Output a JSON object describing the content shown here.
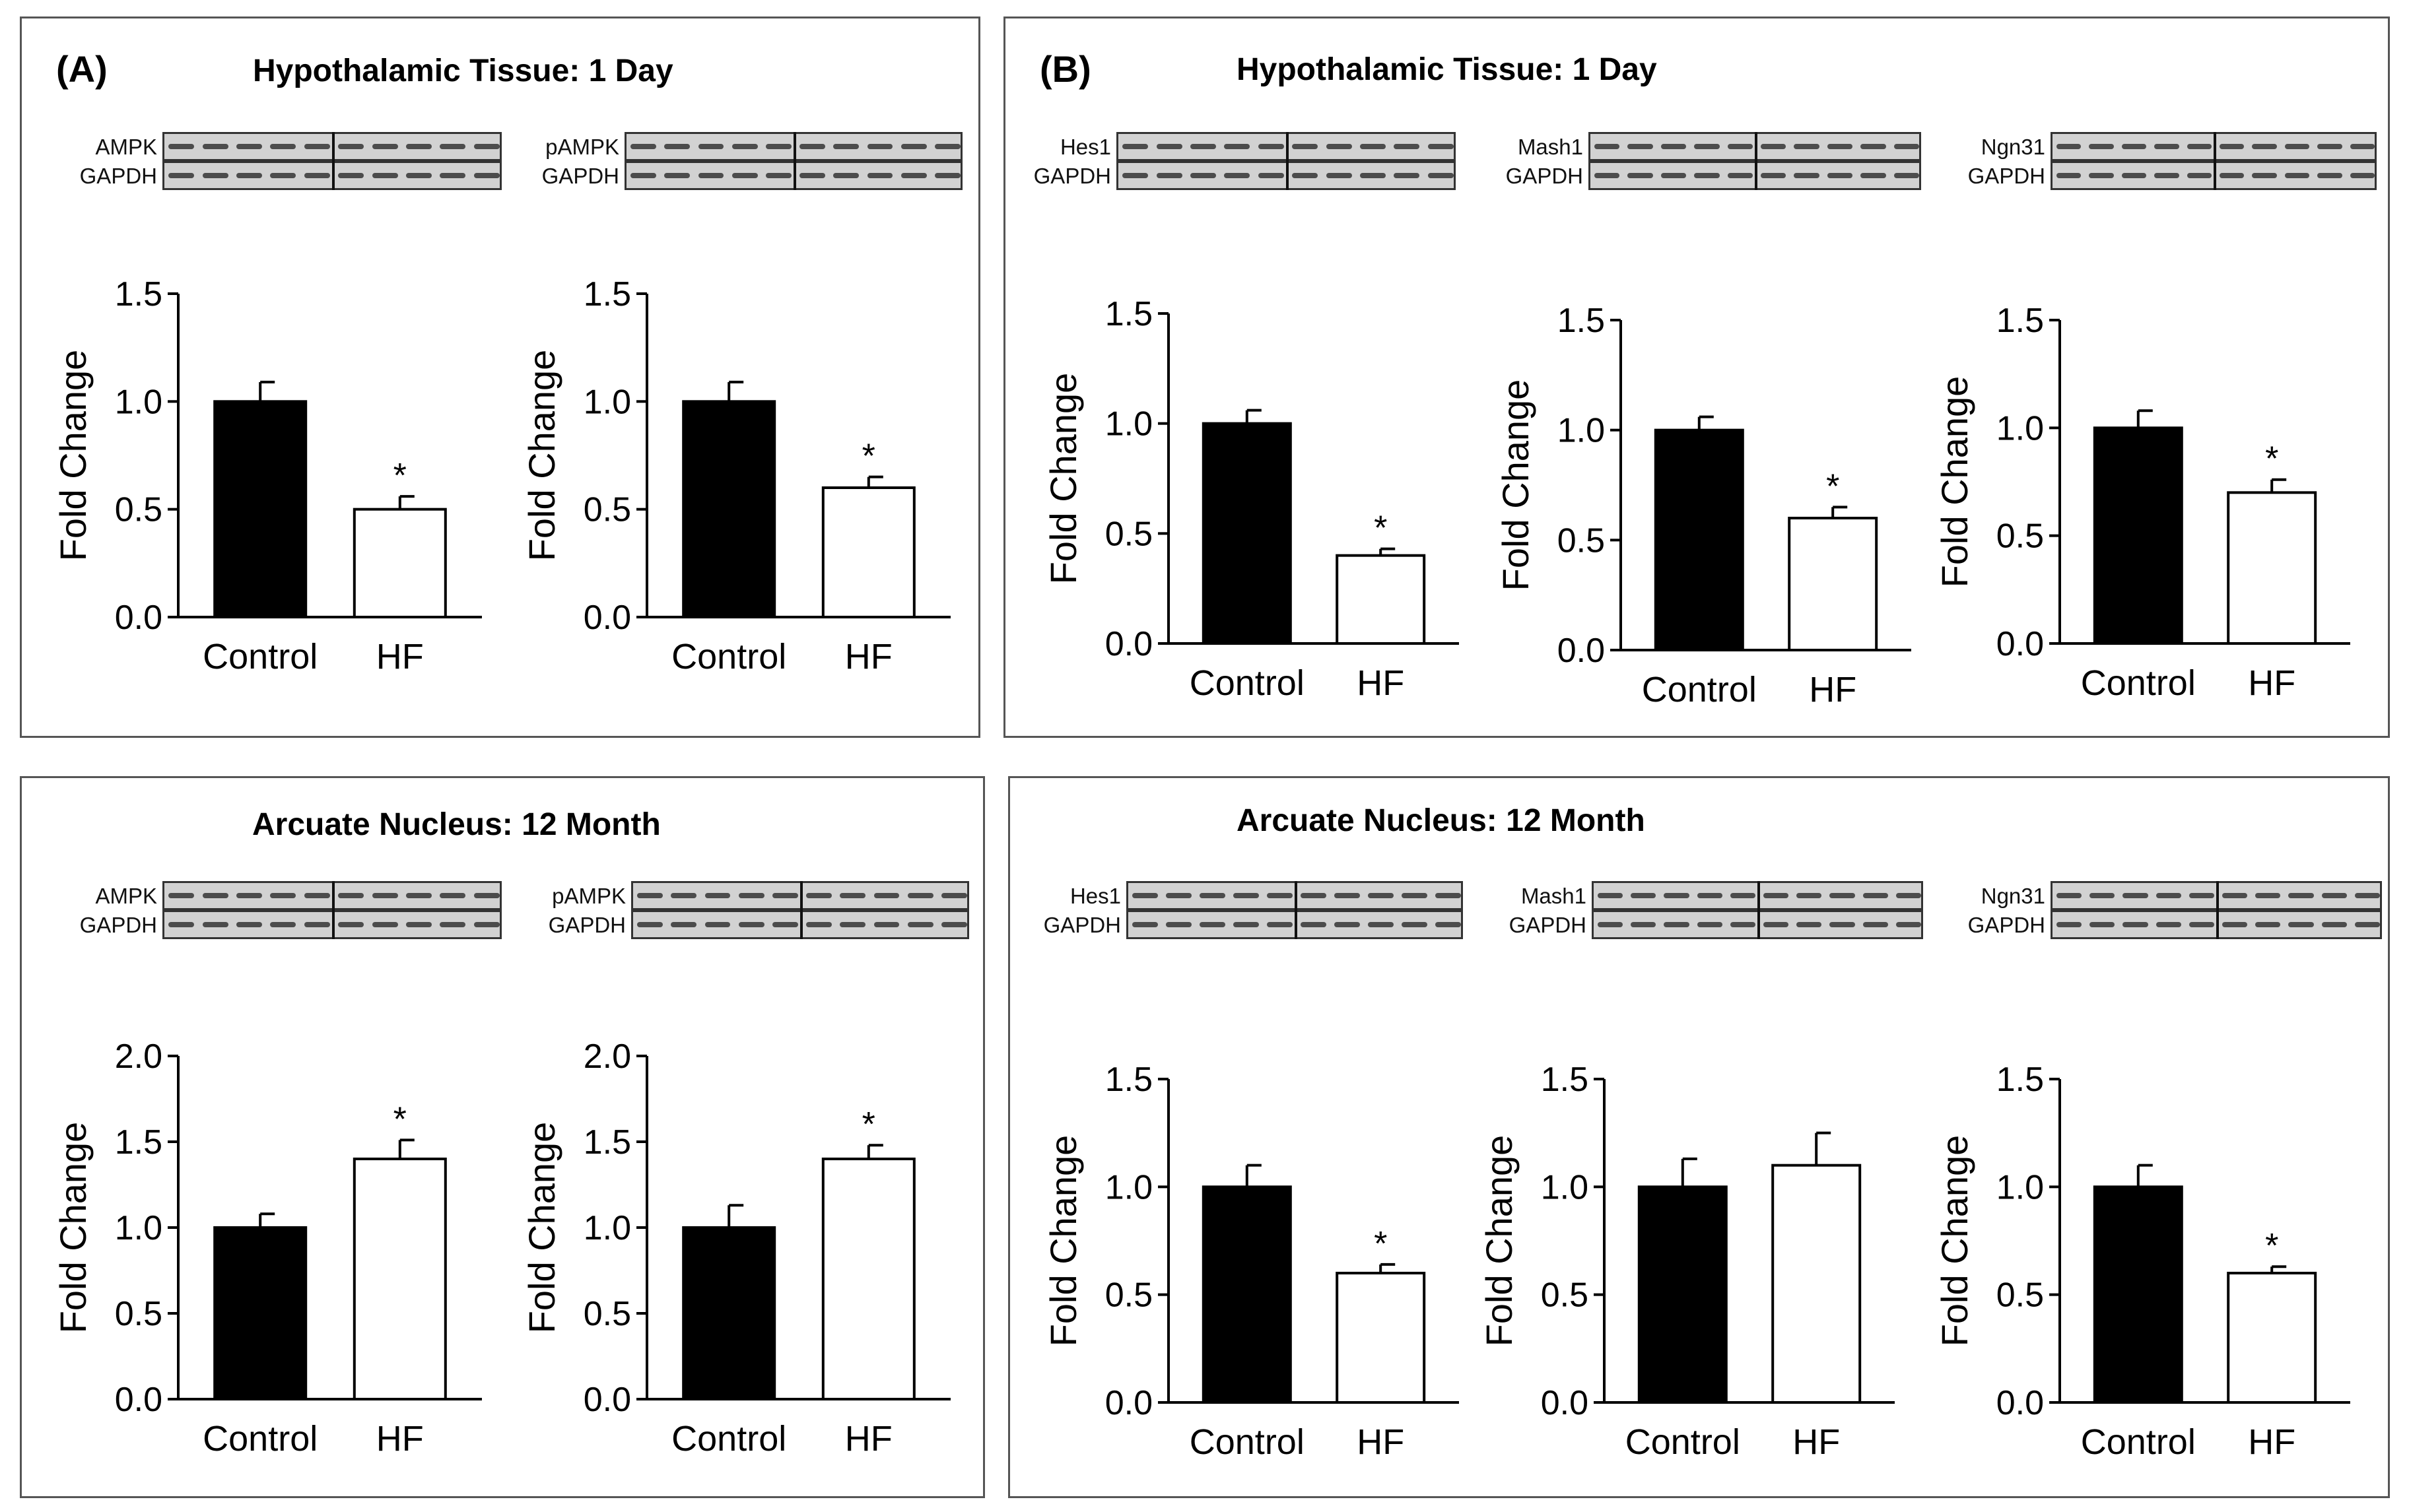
{
  "panels": [
    {
      "id": "A-top",
      "label": "(A)",
      "title": "Hypothalamic Tissue: 1 Day"
    },
    {
      "id": "B-top",
      "label": "(B)",
      "title": "Hypothalamic Tissue: 1 Day"
    },
    {
      "id": "A-bottom",
      "label": "",
      "title": "Arcuate Nucleus: 12 Month"
    },
    {
      "id": "B-bottom",
      "label": "",
      "title": "Arcuate Nucleus: 12 Month"
    }
  ],
  "blots": {
    "a1": {
      "target": "AMPK",
      "control": "GAPDH"
    },
    "a2": {
      "target": "pAMPK",
      "control": "GAPDH"
    },
    "b1": {
      "target": "Hes1",
      "control": "GAPDH"
    },
    "b2": {
      "target": "Mash1",
      "control": "GAPDH"
    },
    "b3": {
      "target": "Ngn31",
      "control": "GAPDH"
    },
    "c1": {
      "target": "AMPK",
      "control": "GAPDH"
    },
    "c2": {
      "target": "pAMPK",
      "control": "GAPDH"
    },
    "d1": {
      "target": "Hes1",
      "control": "GAPDH"
    },
    "d2": {
      "target": "Mash1",
      "control": "GAPDH"
    },
    "d3": {
      "target": "Ngn31",
      "control": "GAPDH"
    }
  },
  "colors": {
    "control_bar": "#000000",
    "hf_bar": "#ffffff",
    "axis": "#000000"
  },
  "chart_data": [
    {
      "id": "a1",
      "type": "bar",
      "panel": "A-top",
      "protein": "AMPK",
      "ylabel": "Fold Change",
      "categories": [
        "Control",
        "HF"
      ],
      "values": [
        1.0,
        0.5
      ],
      "errors": [
        0.09,
        0.06
      ],
      "significance": [
        "",
        "*"
      ],
      "ylim": [
        0,
        1.5
      ],
      "yticks": [
        "0.0",
        "0.5",
        "1.0",
        "1.5"
      ]
    },
    {
      "id": "a2",
      "type": "bar",
      "panel": "A-top",
      "protein": "pAMPK",
      "ylabel": "Fold Change",
      "categories": [
        "Control",
        "HF"
      ],
      "values": [
        1.0,
        0.6
      ],
      "errors": [
        0.09,
        0.05
      ],
      "significance": [
        "",
        "*"
      ],
      "ylim": [
        0,
        1.5
      ],
      "yticks": [
        "0.0",
        "0.5",
        "1.0",
        "1.5"
      ]
    },
    {
      "id": "b1",
      "type": "bar",
      "panel": "B-top",
      "protein": "Hes1",
      "ylabel": "Fold Change",
      "categories": [
        "Control",
        "HF"
      ],
      "values": [
        1.0,
        0.4
      ],
      "errors": [
        0.06,
        0.03
      ],
      "significance": [
        "",
        "*"
      ],
      "ylim": [
        0,
        1.5
      ],
      "yticks": [
        "0.0",
        "0.5",
        "1.0",
        "1.5"
      ]
    },
    {
      "id": "b2",
      "type": "bar",
      "panel": "B-top",
      "protein": "Mash1",
      "ylabel": "Fold Change",
      "categories": [
        "Control",
        "HF"
      ],
      "values": [
        1.0,
        0.6
      ],
      "errors": [
        0.06,
        0.05
      ],
      "significance": [
        "",
        "*"
      ],
      "ylim": [
        0,
        1.5
      ],
      "yticks": [
        "0.0",
        "0.5",
        "1.0",
        "1.5"
      ]
    },
    {
      "id": "b3",
      "type": "bar",
      "panel": "B-top",
      "protein": "Ngn31",
      "ylabel": "Fold Change",
      "categories": [
        "Control",
        "HF"
      ],
      "values": [
        1.0,
        0.7
      ],
      "errors": [
        0.08,
        0.06
      ],
      "significance": [
        "",
        "*"
      ],
      "ylim": [
        0,
        1.5
      ],
      "yticks": [
        "0.0",
        "0.5",
        "1.0",
        "1.5"
      ]
    },
    {
      "id": "c1",
      "type": "bar",
      "panel": "A-bottom",
      "protein": "AMPK",
      "ylabel": "Fold Change",
      "categories": [
        "Control",
        "HF"
      ],
      "values": [
        1.0,
        1.4
      ],
      "errors": [
        0.08,
        0.11
      ],
      "significance": [
        "",
        "*"
      ],
      "ylim": [
        0,
        2.0
      ],
      "yticks": [
        "0.0",
        "0.5",
        "1.0",
        "1.5",
        "2.0"
      ]
    },
    {
      "id": "c2",
      "type": "bar",
      "panel": "A-bottom",
      "protein": "pAMPK",
      "ylabel": "Fold Change",
      "categories": [
        "Control",
        "HF"
      ],
      "values": [
        1.0,
        1.4
      ],
      "errors": [
        0.13,
        0.08
      ],
      "significance": [
        "",
        "*"
      ],
      "ylim": [
        0,
        2.0
      ],
      "yticks": [
        "0.0",
        "0.5",
        "1.0",
        "1.5",
        "2.0"
      ]
    },
    {
      "id": "d1",
      "type": "bar",
      "panel": "B-bottom",
      "protein": "Hes1",
      "ylabel": "Fold Change",
      "categories": [
        "Control",
        "HF"
      ],
      "values": [
        1.0,
        0.6
      ],
      "errors": [
        0.1,
        0.04
      ],
      "significance": [
        "",
        "*"
      ],
      "ylim": [
        0,
        1.5
      ],
      "yticks": [
        "0.0",
        "0.5",
        "1.0",
        "1.5"
      ]
    },
    {
      "id": "d2",
      "type": "bar",
      "panel": "B-bottom",
      "protein": "Mash1",
      "ylabel": "Fold Change",
      "categories": [
        "Control",
        "HF"
      ],
      "values": [
        1.0,
        1.1
      ],
      "errors": [
        0.13,
        0.15
      ],
      "significance": [
        "",
        ""
      ],
      "ylim": [
        0,
        1.5
      ],
      "yticks": [
        "0.0",
        "0.5",
        "1.0",
        "1.5"
      ]
    },
    {
      "id": "d3",
      "type": "bar",
      "panel": "B-bottom",
      "protein": "Ngn31",
      "ylabel": "Fold Change",
      "categories": [
        "Control",
        "HF"
      ],
      "values": [
        1.0,
        0.6
      ],
      "errors": [
        0.1,
        0.03
      ],
      "significance": [
        "",
        "*"
      ],
      "ylim": [
        0,
        1.5
      ],
      "yticks": [
        "0.0",
        "0.5",
        "1.0",
        "1.5"
      ]
    }
  ]
}
